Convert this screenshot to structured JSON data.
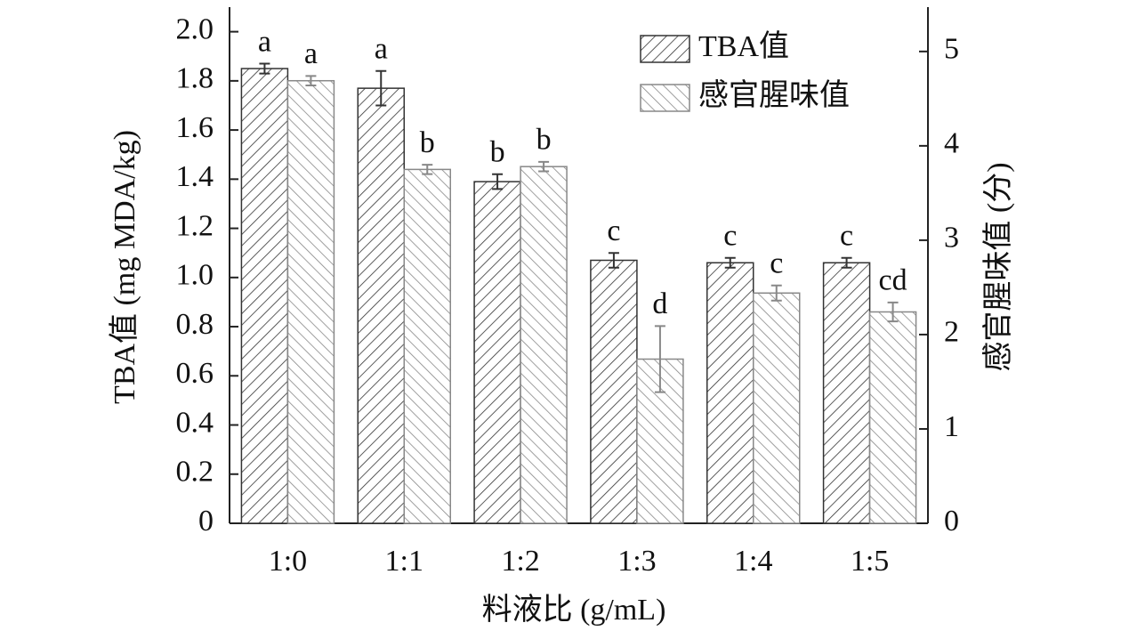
{
  "chart_data": {
    "type": "bar",
    "x_label": "料液比 (g/mL)",
    "y_label": "TBA值 (mg MDA/kg)",
    "y2_label": "感官腥味值 (分)",
    "categories": [
      "1:0",
      "1:1",
      "1:2",
      "1:3",
      "1:4",
      "1:5"
    ],
    "ylim": [
      0,
      2.1
    ],
    "yticks": [
      0,
      0.2,
      0.4,
      0.6,
      0.8,
      {
        "value": 1.0,
        "label": "1.0"
      },
      1.2,
      1.4,
      1.6,
      1.8,
      {
        "value": 2.0,
        "label": "2.0"
      }
    ],
    "y2lim": [
      0,
      5.47
    ],
    "y2ticks": [
      0,
      1,
      2,
      3,
      4,
      5
    ],
    "legend": "top-right",
    "series": [
      {
        "name": "TBA值",
        "color": "#333333",
        "values": [
          1.85,
          1.77,
          1.39,
          1.07,
          1.06,
          1.06
        ],
        "errors": [
          0.02,
          0.07,
          0.03,
          0.03,
          0.02,
          0.02
        ],
        "letters": [
          "a",
          "a",
          "b",
          "c",
          "c",
          "c"
        ]
      },
      {
        "name": "感官腥味值",
        "color": "#888888",
        "axis": "y2",
        "values": [
          4.69,
          3.75,
          3.78,
          1.74,
          2.44,
          2.24
        ],
        "errors": [
          0.05,
          0.05,
          0.05,
          0.35,
          0.08,
          0.1
        ],
        "letters": [
          "a",
          "b",
          "b",
          "d",
          "c",
          "cd"
        ]
      }
    ]
  }
}
